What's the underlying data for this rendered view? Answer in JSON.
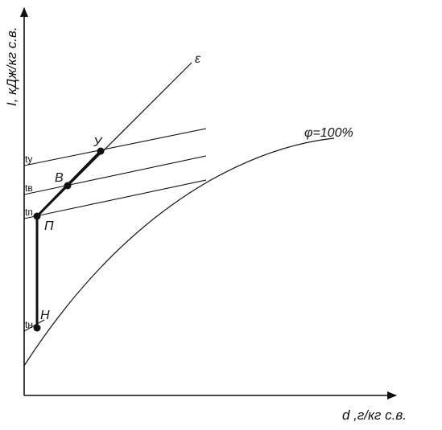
{
  "diagram": {
    "y_axis_label": "I, кДж/кг с.в.",
    "x_axis_label": "d ,г/кг с.в.",
    "epsilon_label": "ε",
    "saturation_label": "φ=100%",
    "isotherm_labels": {
      "ty": "tу",
      "tv": "tв",
      "tp": "tп",
      "tn": "tн"
    },
    "point_labels": {
      "U": "У",
      "V": "В",
      "P": "П",
      "N": "Н"
    },
    "colors": {
      "line": "#111111",
      "background": "#ffffff"
    }
  }
}
